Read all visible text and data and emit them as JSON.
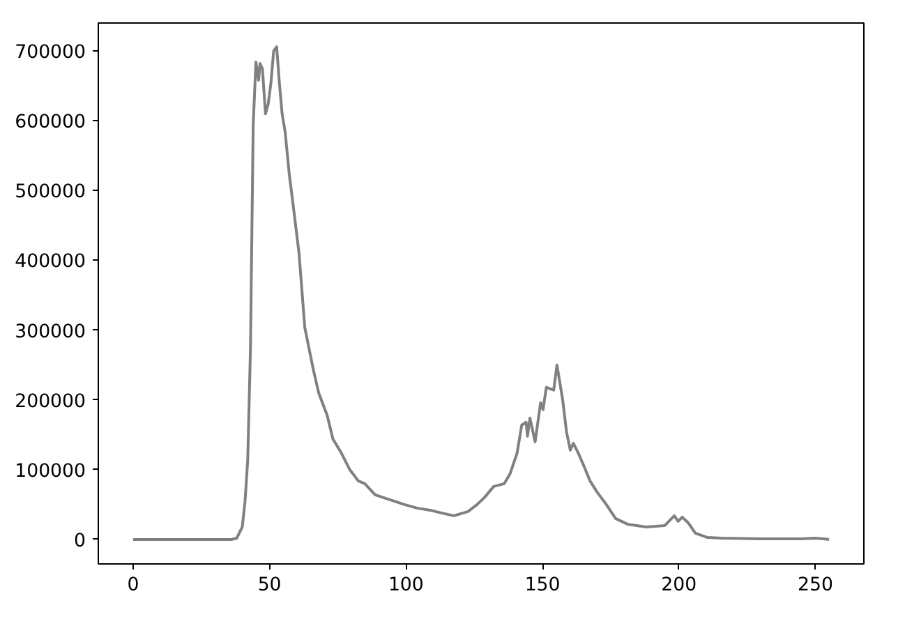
{
  "chart_data": {
    "type": "line",
    "xlim": [
      -12.75,
      267.75
    ],
    "ylim": [
      -35000,
      740000
    ],
    "xticks": [
      0,
      50,
      100,
      150,
      200,
      250
    ],
    "yticks": [
      0,
      100000,
      200000,
      300000,
      400000,
      500000,
      600000,
      700000
    ],
    "grid": false,
    "series": [
      {
        "color": "#808080",
        "x": [
          0,
          10,
          20,
          30,
          36,
          38,
          40,
          41,
          42,
          43,
          44,
          45,
          46,
          46.5,
          47.4,
          48.5,
          49.5,
          50.5,
          51.5,
          52.6,
          53.6,
          54.6,
          55.7,
          57.2,
          58.8,
          60.8,
          62.9,
          66,
          68,
          71.1,
          73.2,
          76.3,
          79.4,
          82.5,
          84.9,
          88.7,
          93.3,
          99.5,
          104,
          108.8,
          113,
          117.5,
          122.7,
          126,
          128.7,
          132.1,
          136,
          138.1,
          140.7,
          142.4,
          144,
          144.5,
          145.4,
          147.3,
          149.3,
          150.2,
          151.4,
          154.1,
          155.3,
          157.4,
          158.8,
          160.2,
          161.3,
          163.1,
          165.3,
          167.4,
          170,
          173.4,
          176.8,
          181.1,
          188,
          194.8,
          198.3,
          199.7,
          201.2,
          203.4,
          206,
          210.3,
          215.5,
          230,
          245,
          250,
          253,
          255
        ],
        "values": [
          0,
          0,
          0,
          0,
          0,
          2000,
          18000,
          54000,
          114000,
          274000,
          594000,
          684000,
          658000,
          682000,
          674000,
          610000,
          624000,
          654000,
          700000,
          706000,
          654000,
          610000,
          584000,
          524000,
          474000,
          410000,
          304000,
          244000,
          210000,
          178000,
          144000,
          124000,
          100000,
          84000,
          80000,
          64000,
          58000,
          50000,
          45000,
          42000,
          38000,
          34000,
          40000,
          50000,
          60000,
          76000,
          80000,
          94000,
          124000,
          164000,
          168000,
          148000,
          174000,
          140000,
          196000,
          186000,
          218000,
          214000,
          250000,
          200000,
          154000,
          128000,
          138000,
          124000,
          104000,
          84000,
          68000,
          50000,
          30000,
          22000,
          18000,
          20000,
          34000,
          26000,
          32000,
          24000,
          9000,
          3000,
          2000,
          1000,
          1000,
          2000,
          1000,
          0
        ]
      }
    ]
  }
}
